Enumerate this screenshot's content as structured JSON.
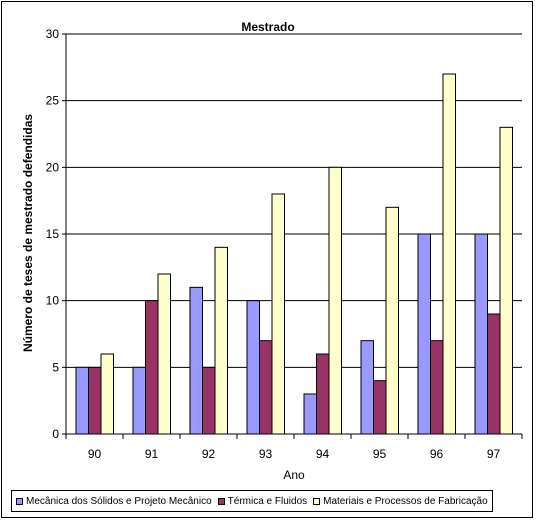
{
  "chart_data": {
    "type": "bar",
    "title": "Mestrado",
    "xlabel": "Ano",
    "ylabel": "Número de teses de mestrado defendidas",
    "categories": [
      "90",
      "91",
      "92",
      "93",
      "94",
      "95",
      "96",
      "97"
    ],
    "ylim": [
      0,
      30
    ],
    "yticks": [
      0,
      5,
      10,
      15,
      20,
      25,
      30
    ],
    "grid": true,
    "legend_position": "bottom",
    "series": [
      {
        "name": "Mecânica dos Sólidos e Projeto Mecânico",
        "color": "#9999FF",
        "values": [
          5,
          5,
          11,
          10,
          3,
          7,
          15,
          15
        ]
      },
      {
        "name": "Térmica e Fluidos",
        "color": "#993366",
        "values": [
          5,
          10,
          5,
          7,
          6,
          4,
          7,
          9
        ]
      },
      {
        "name": "Materiais e Processos de Fabricação",
        "color": "#FFFFCC",
        "values": [
          6,
          12,
          14,
          18,
          20,
          17,
          27,
          23
        ]
      }
    ]
  }
}
